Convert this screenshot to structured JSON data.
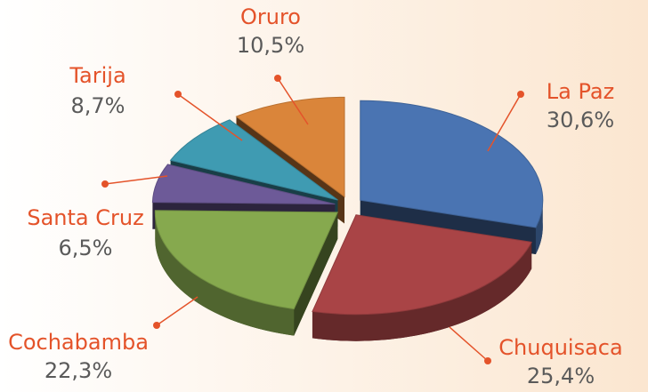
{
  "chart_data": {
    "type": "pie",
    "categories": [
      "La Paz",
      "Chuquisaca",
      "Cochabamba",
      "Santa Cruz",
      "Tarija",
      "Oruro"
    ],
    "values": [
      30.6,
      25.4,
      22.3,
      6.5,
      8.7,
      10.5
    ],
    "value_labels": [
      "30,6%",
      "25,4%",
      "22,3%",
      "6,5%",
      "8,7%",
      "10,5%"
    ],
    "colors": [
      "#4a74b2",
      "#a94446",
      "#86a94e",
      "#6d5a98",
      "#3f9bb2",
      "#da853a"
    ]
  }
}
